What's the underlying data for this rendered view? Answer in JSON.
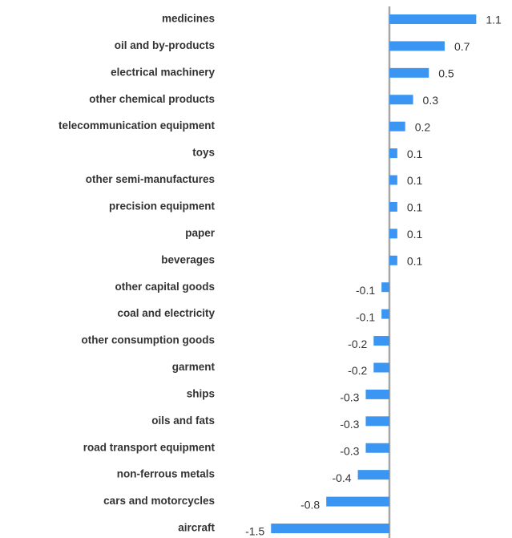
{
  "chart_data": {
    "type": "hbar",
    "categories": [
      "medicines",
      "oil and by-products",
      "electrical machinery",
      "other chemical products",
      "telecommunication equipment",
      "toys",
      "other semi-manufactures",
      "precision equipment",
      "paper",
      "beverages",
      "other capital goods",
      "coal and electricity",
      "other consumption goods",
      "garment",
      "ships",
      "oils and fats",
      "road transport equipment",
      "non-ferrous metals",
      "cars and motorcycles",
      "aircraft"
    ],
    "values": [
      1.1,
      0.7,
      0.5,
      0.3,
      0.2,
      0.1,
      0.1,
      0.1,
      0.1,
      0.1,
      -0.1,
      -0.1,
      -0.2,
      -0.2,
      -0.3,
      -0.3,
      -0.3,
      -0.4,
      -0.8,
      -1.5
    ],
    "color": "#3a96f2"
  }
}
